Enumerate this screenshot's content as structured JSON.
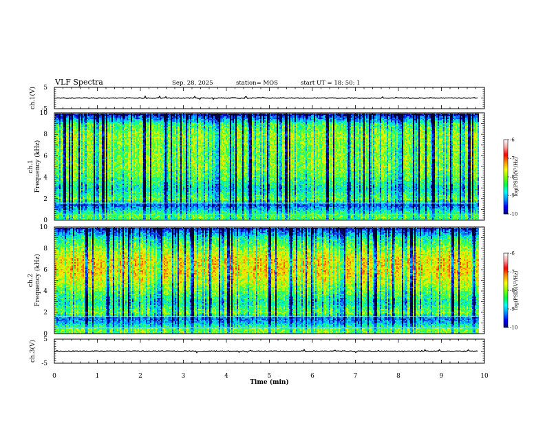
{
  "header": {
    "title": "VLF Spectra",
    "date": "Sep. 28, 2025",
    "station": "station= MOS",
    "start": "start  UT  =   18: 50: 1"
  },
  "colors": {
    "spectrogram": [
      "#000033",
      "#0000c0",
      "#0060ff",
      "#00c8ff",
      "#00ff9c",
      "#5cff2c",
      "#d8ff00",
      "#ffd200",
      "#ff5a00",
      "#e00000",
      "#ffffff"
    ],
    "colorbar": [
      "#000080",
      "#0000ff",
      "#0090ff",
      "#00ffff",
      "#00ff40",
      "#80ff00",
      "#ffff00",
      "#ff9000",
      "#ff0000",
      "#ffa0a0",
      "#ffffff"
    ]
  },
  "chart_data": [
    {
      "type": "line",
      "id": "ch1-waveform",
      "ylabel": "ch.1(V)",
      "ylim": [
        -5,
        5
      ],
      "yticks": [
        "5",
        "-5"
      ],
      "xlim": [
        0,
        10
      ],
      "series": [
        {
          "x": [
            0,
            1,
            2,
            3,
            4,
            5,
            6,
            7,
            8,
            9,
            9.85
          ],
          "y": [
            0,
            0,
            0,
            0,
            0,
            0,
            0,
            0,
            0,
            0,
            0
          ]
        }
      ]
    },
    {
      "type": "heatmap",
      "id": "ch1-spectrogram",
      "ylabel": "ch.1\nFrequency (kHz)",
      "ylabel_line1": "ch.1",
      "ylabel_line2": "Frequency  (kHz)",
      "xlim": [
        0,
        10
      ],
      "ylim": [
        0,
        10
      ],
      "yticks": [
        "0",
        "2",
        "4",
        "6",
        "8",
        "10"
      ],
      "data_end_min": 9.85,
      "intensity_profile": {
        "freq_khz": [
          0,
          0.5,
          1,
          1.5,
          2,
          3,
          4,
          5,
          6,
          7,
          8,
          9,
          9.5,
          10
        ],
        "log_psd": [
          -8.2,
          -8.0,
          -8.6,
          -9.2,
          -8.0,
          -8.6,
          -8.1,
          -7.9,
          -7.9,
          -7.9,
          -7.8,
          -8.2,
          -9.0,
          -9.8
        ]
      },
      "colorbar": {
        "label": "log(PSD)(V²/Hz)",
        "range": [
          -10,
          -6
        ],
        "ticks": [
          "-6",
          "-7",
          "-8",
          "-9",
          "-10"
        ]
      }
    },
    {
      "type": "heatmap",
      "id": "ch2-spectrogram",
      "ylabel": "ch.2\nFrequency (kHz)",
      "ylabel_line1": "ch.2",
      "ylabel_line2": "Frequency  (kHz)",
      "xlim": [
        0,
        10
      ],
      "ylim": [
        0,
        10
      ],
      "yticks": [
        "0",
        "2",
        "4",
        "6",
        "8",
        "10"
      ],
      "data_end_min": 9.85,
      "intensity_profile": {
        "freq_khz": [
          0,
          0.5,
          1,
          1.5,
          2,
          3,
          4,
          5,
          6,
          7,
          8,
          9,
          9.5,
          10
        ],
        "log_psd": [
          -8.0,
          -7.9,
          -8.7,
          -9.1,
          -7.9,
          -8.5,
          -8.0,
          -7.6,
          -7.3,
          -7.3,
          -7.8,
          -8.4,
          -9.0,
          -9.6
        ]
      },
      "colorbar": {
        "label": "log(PSD)(V²/Hz)",
        "range": [
          -10,
          -6
        ],
        "ticks": [
          "-6",
          "-7",
          "-8",
          "-9",
          "-10"
        ]
      }
    },
    {
      "type": "line",
      "id": "ch3-waveform",
      "ylabel": "ch.3(V)",
      "ylim": [
        -5,
        5
      ],
      "yticks": [
        "5",
        "-5"
      ],
      "xlim": [
        0,
        10
      ],
      "xlabel": "Time  (min)",
      "xticks": [
        "0",
        "1",
        "2",
        "3",
        "4",
        "5",
        "6",
        "7",
        "8",
        "9",
        "10"
      ],
      "series": [
        {
          "x": [
            0,
            1,
            2,
            3,
            4,
            5,
            6,
            7,
            8,
            9,
            9.85
          ],
          "y": [
            0,
            0,
            0,
            0,
            0,
            0,
            0,
            0,
            0,
            0,
            0
          ]
        }
      ]
    }
  ]
}
